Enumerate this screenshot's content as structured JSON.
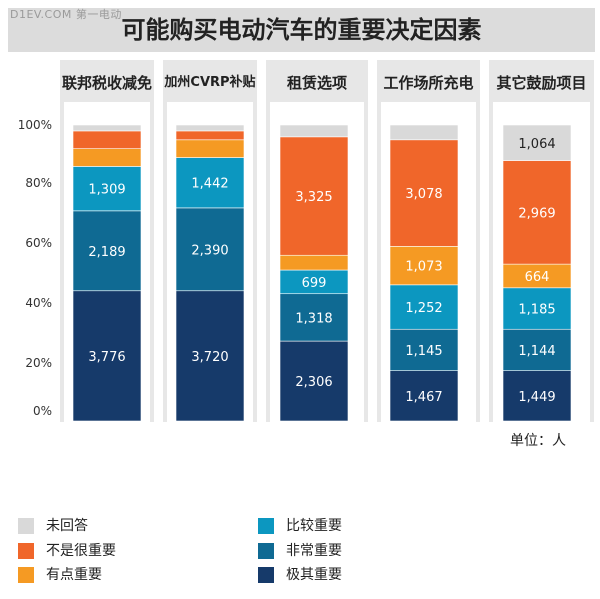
{
  "watermark": "D1EV.COM 第一电动",
  "title": "可能购买电动汽车的重要决定因素",
  "unit_label": "单位：人",
  "y_ticks": [
    "100%",
    "80%",
    "60%",
    "40%",
    "20%",
    "0%"
  ],
  "colors": {
    "no_answer": "#d9d9d9",
    "not_important": "#f0662a",
    "somewhat_important": "#f59a23",
    "more_important": "#0c97c0",
    "very_important": "#0f6a93",
    "extremely_important": "#163a6a"
  },
  "legend": [
    {
      "key": "no_answer",
      "label": "未回答"
    },
    {
      "key": "not_important",
      "label": "不是很重要"
    },
    {
      "key": "somewhat_important",
      "label": "有点重要"
    },
    {
      "key": "more_important",
      "label": "比较重要"
    },
    {
      "key": "very_important",
      "label": "非常重要"
    },
    {
      "key": "extremely_important",
      "label": "极其重要"
    }
  ],
  "chart_data": {
    "type": "bar",
    "stacked": true,
    "ylim": [
      0,
      100
    ],
    "y_unit": "%",
    "categories": [
      "联邦税收减免",
      "加州CVRP补贴",
      "租赁选项",
      "工作场所充电",
      "其它鼓励项目"
    ],
    "series": [
      {
        "key": "extremely_important",
        "name": "极其重要",
        "percent": [
          44,
          44,
          27,
          17,
          17
        ],
        "labels": [
          "3,776",
          "3,720",
          "2,306",
          "1,467",
          "1,449"
        ]
      },
      {
        "key": "very_important",
        "name": "非常重要",
        "percent": [
          27,
          28,
          16,
          14,
          14
        ],
        "labels": [
          "2,189",
          "2,390",
          "1,318",
          "1,145",
          "1,144"
        ]
      },
      {
        "key": "more_important",
        "name": "比较重要",
        "percent": [
          15,
          17,
          8,
          15,
          14
        ],
        "labels": [
          "1,309",
          "1,442",
          "699",
          "1,252",
          "1,185"
        ]
      },
      {
        "key": "somewhat_important",
        "name": "有点重要",
        "percent": [
          6,
          6,
          5,
          13,
          8
        ],
        "labels": [
          "",
          "",
          "",
          "1,073",
          "664"
        ]
      },
      {
        "key": "not_important",
        "name": "不是很重要",
        "percent": [
          6,
          3,
          40,
          36,
          35
        ],
        "labels": [
          "",
          "",
          "3,325",
          "3,078",
          "2,969"
        ]
      },
      {
        "key": "no_answer",
        "name": "未回答",
        "percent": [
          2,
          2,
          4,
          5,
          12
        ],
        "labels": [
          "",
          "",
          "",
          "",
          "1,064"
        ]
      }
    ]
  }
}
